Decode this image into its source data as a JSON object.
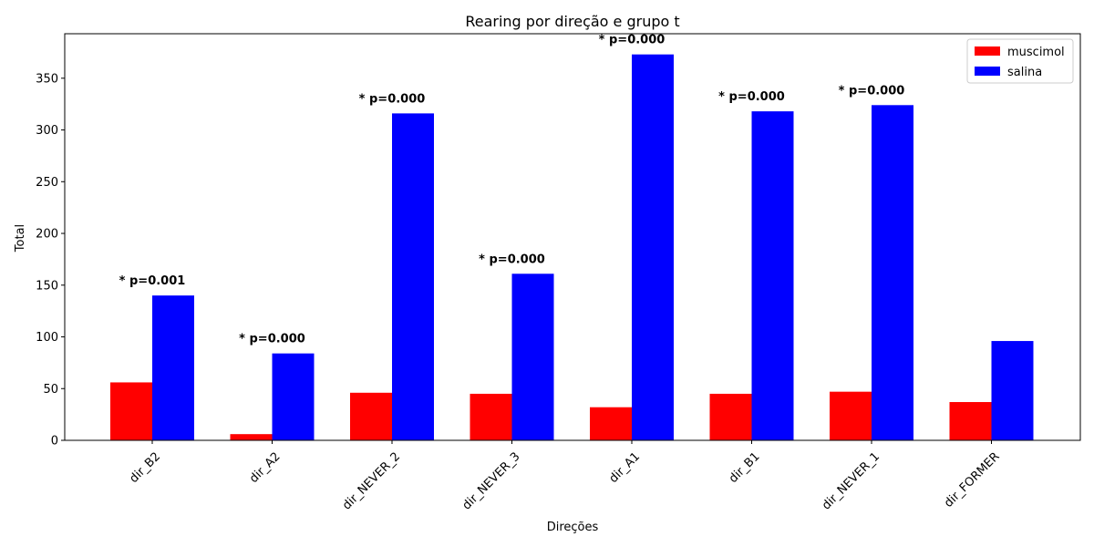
{
  "chart_data": {
    "type": "bar",
    "title": "Rearing por direção e grupo t",
    "xlabel": "Direções",
    "ylabel": "Total",
    "categories": [
      "dir_B2",
      "dir_A2",
      "dir_NEVER_2",
      "dir_NEVER_3",
      "dir_A1",
      "dir_B1",
      "dir_NEVER_1",
      "dir_FORMER"
    ],
    "series": [
      {
        "name": "muscimol",
        "color": "#ff0000",
        "values": [
          56,
          6,
          46,
          45,
          32,
          45,
          47,
          37
        ]
      },
      {
        "name": "salina",
        "color": "#0000ff",
        "values": [
          140,
          84,
          316,
          161,
          373,
          318,
          324,
          96
        ]
      }
    ],
    "annotations": [
      "* p=0.001",
      "* p=0.000",
      "* p=0.000",
      "* p=0.000",
      "* p=0.000",
      "* p=0.000",
      "* p=0.000",
      ""
    ],
    "ylim": [
      0,
      393
    ],
    "yticks": [
      0,
      50,
      100,
      150,
      200,
      250,
      300,
      350
    ],
    "grid": false,
    "legend": "top-right"
  }
}
